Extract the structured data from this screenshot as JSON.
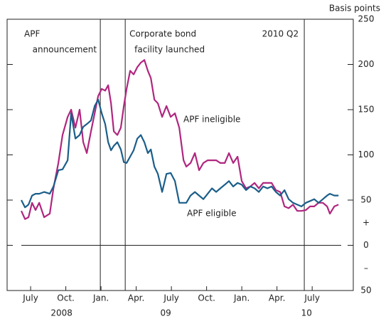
{
  "chart_data": {
    "type": "line",
    "unit_label": "Basis points",
    "sign_labels": [
      "+",
      "–"
    ],
    "ylim": [
      -50,
      250
    ],
    "yticks": [
      250,
      200,
      150,
      100,
      50,
      0,
      {
        "value": -50,
        "label": "50"
      }
    ],
    "xlim": [
      2008.333,
      2010.792
    ],
    "xticks": [
      {
        "value": 2008.5,
        "label": "July"
      },
      {
        "value": 2008.75,
        "label": "Oct."
      },
      {
        "value": 2009.0,
        "label": "Jan."
      },
      {
        "value": 2009.25,
        "label": "Apr."
      },
      {
        "value": 2009.5,
        "label": "July"
      },
      {
        "value": 2009.75,
        "label": "Oct."
      },
      {
        "value": 2010.0,
        "label": "Jan."
      },
      {
        "value": 2010.25,
        "label": "Apr."
      },
      {
        "value": 2010.5,
        "label": "July"
      }
    ],
    "year_labels": [
      {
        "value": 2008.72,
        "label": "2008"
      },
      {
        "value": 2009.46,
        "label": "09"
      },
      {
        "value": 2010.46,
        "label": "10"
      }
    ],
    "events": [
      {
        "value": 2008.995,
        "lines": [
          "APF",
          "announcement"
        ]
      },
      {
        "value": 2009.172,
        "lines": [
          "Corporate bond",
          "facility launched"
        ]
      },
      {
        "value": 2010.444,
        "lines": [
          "2010 Q2"
        ]
      }
    ],
    "x": [
      2008.434,
      2008.46,
      2008.485,
      2008.51,
      2008.535,
      2008.561,
      2008.596,
      2008.636,
      2008.662,
      2008.697,
      2008.727,
      2008.763,
      2008.788,
      2008.818,
      2008.848,
      2008.874,
      2008.899,
      2008.929,
      2008.955,
      2008.98,
      2009.005,
      2009.03,
      2009.051,
      2009.071,
      2009.091,
      2009.116,
      2009.141,
      2009.162,
      2009.182,
      2009.207,
      2009.232,
      2009.258,
      2009.283,
      2009.308,
      2009.333,
      2009.354,
      2009.379,
      2009.404,
      2009.434,
      2009.465,
      2009.495,
      2009.525,
      2009.556,
      2009.586,
      2009.606,
      2009.636,
      2009.667,
      2009.697,
      2009.727,
      2009.758,
      2009.788,
      2009.818,
      2009.848,
      2009.879,
      2009.909,
      2009.939,
      2009.97,
      2010.0,
      2010.03,
      2010.061,
      2010.091,
      2010.121,
      2010.152,
      2010.182,
      2010.212,
      2010.242,
      2010.273,
      2010.303,
      2010.333,
      2010.364,
      2010.394,
      2010.424,
      2010.455,
      2010.485,
      2010.515,
      2010.545,
      2010.576,
      2010.606,
      2010.626,
      2010.657,
      2010.687
    ],
    "series": [
      {
        "name": "APF ineligible",
        "color": "#b0267f",
        "values": [
          38,
          29,
          31,
          47,
          39,
          47,
          31,
          35,
          63,
          91,
          122,
          142,
          150,
          130,
          150,
          114,
          102,
          126,
          146,
          165,
          173,
          171,
          177,
          157,
          126,
          122,
          130,
          154,
          173,
          193,
          189,
          197,
          202,
          205,
          193,
          185,
          161,
          157,
          142,
          154,
          142,
          146,
          130,
          94,
          87,
          91,
          102,
          83,
          91,
          94,
          94,
          94,
          91,
          91,
          102,
          91,
          98,
          71,
          63,
          65,
          69,
          63,
          69,
          69,
          69,
          61,
          59,
          43,
          41,
          45,
          38,
          38,
          39,
          43,
          43,
          47,
          47,
          43,
          35,
          43,
          45
        ]
      },
      {
        "name": "APF eligible",
        "color": "#1b5e8a",
        "values": [
          50,
          42,
          45,
          55,
          57,
          57,
          59,
          57,
          65,
          83,
          84,
          94,
          146,
          118,
          122,
          131,
          134,
          138,
          154,
          161,
          146,
          134,
          114,
          105,
          110,
          114,
          106,
          92,
          91,
          98,
          105,
          118,
          122,
          114,
          102,
          106,
          87,
          79,
          59,
          79,
          80,
          71,
          47,
          47,
          47,
          55,
          59,
          55,
          51,
          57,
          63,
          59,
          63,
          67,
          71,
          65,
          69,
          67,
          61,
          65,
          63,
          59,
          65,
          63,
          65,
          59,
          55,
          61,
          51,
          47,
          45,
          43,
          47,
          49,
          51,
          47,
          51,
          55,
          57,
          55,
          55
        ]
      }
    ]
  }
}
